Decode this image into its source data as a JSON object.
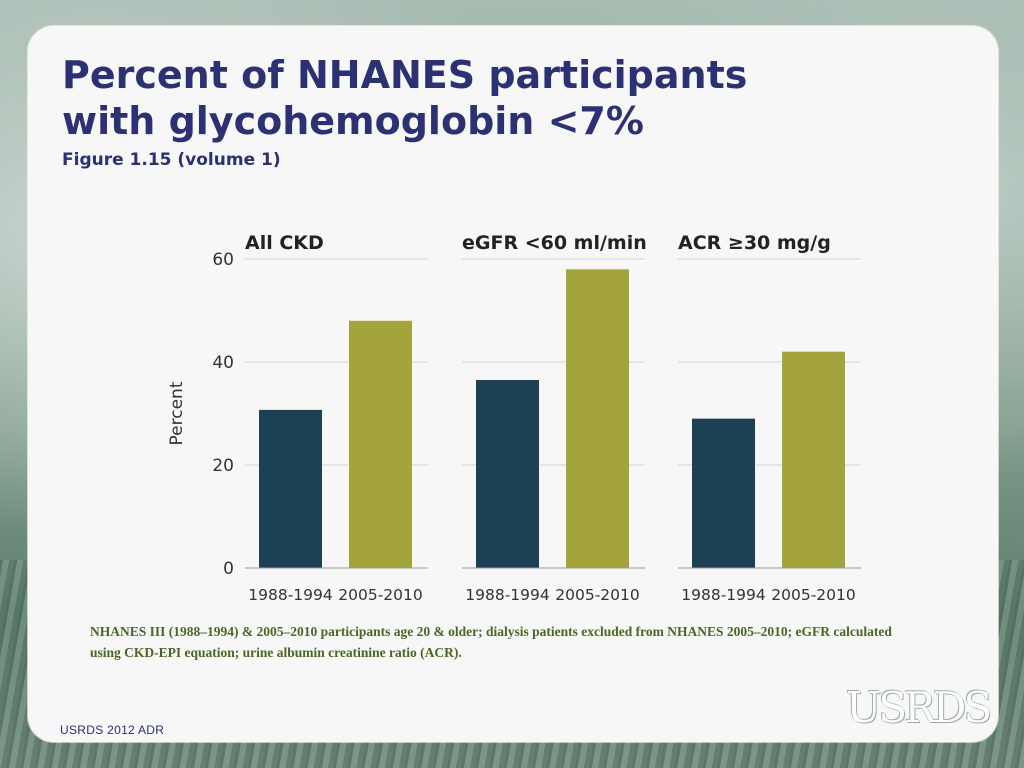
{
  "slide": {
    "title": "Percent of NHANES participants with glycohemoglobin <7%",
    "subtitle": "Figure 1.15 (volume 1)",
    "footnote": "NHANES III (1988–1994) & 2005–2010 participants age 20 & older; dialysis patients excluded from NHANES 2005–2010; eGFR calculated using CKD-EPI equation; urine albumin creatinine ratio (ACR).",
    "footer": "USRDS 2012 ADR",
    "logo_text": "USRDS"
  },
  "colors": {
    "title": "#2b3172",
    "series_1988": "#1c4155",
    "series_2005": "#a4a43c",
    "grid": "#d4d4d4",
    "footnote": "#4b6624"
  },
  "chart_data": {
    "type": "bar",
    "ylabel": "Percent",
    "ylim": [
      0,
      60
    ],
    "yticks": [
      0,
      20,
      40,
      60
    ],
    "grid": true,
    "legend": "none",
    "panels": [
      {
        "title": "All CKD",
        "categories": [
          "1988-1994",
          "2005-2010"
        ],
        "values": [
          30.7,
          48
        ]
      },
      {
        "title": "eGFR <60 ml/min",
        "categories": [
          "1988-1994",
          "2005-2010"
        ],
        "values": [
          36.5,
          58
        ]
      },
      {
        "title": "ACR ≥30 mg/g",
        "categories": [
          "1988-1994",
          "2005-2010"
        ],
        "values": [
          29,
          42
        ]
      }
    ]
  }
}
